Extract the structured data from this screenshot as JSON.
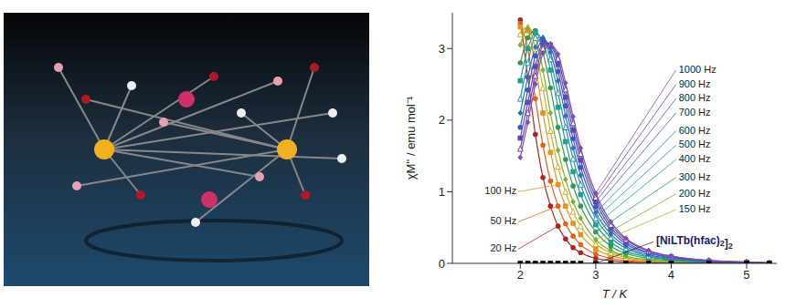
{
  "chart_data": {
    "type": "line",
    "x_label": "T / K",
    "y_label": "χM'' / emu mol⁻¹",
    "x": [
      2,
      2.1,
      2.2,
      2.3,
      2.4,
      2.5,
      2.6,
      2.7,
      2.8,
      3,
      3.2,
      3.4,
      3.7,
      4,
      4.5,
      5,
      5.3
    ],
    "xlim": [
      1.1,
      5.4
    ],
    "xticks": [
      2,
      3,
      4,
      5
    ],
    "ylim": [
      0,
      3.5
    ],
    "yticks": [
      0,
      1,
      2,
      3
    ],
    "grid": false,
    "series": [
      {
        "name": "20 Hz",
        "color": "#b22222",
        "marker": "circle",
        "values": [
          3.4,
          2.6,
          1.8,
          1.2,
          0.8,
          0.52,
          0.34,
          0.22,
          0.15,
          0.07,
          0.04,
          0.02,
          0.01,
          0.01,
          0,
          0,
          0
        ]
      },
      {
        "name": "50 Hz",
        "color": "#e0601a",
        "marker": "circle",
        "values": [
          3.35,
          3.0,
          2.3,
          1.65,
          1.15,
          0.8,
          0.55,
          0.38,
          0.26,
          0.13,
          0.07,
          0.04,
          0.02,
          0.01,
          0,
          0,
          0
        ]
      },
      {
        "name": "100 Hz",
        "color": "#e89020",
        "marker": "square",
        "values": [
          3.3,
          3.25,
          2.75,
          2.1,
          1.55,
          1.1,
          0.8,
          0.56,
          0.4,
          0.2,
          0.11,
          0.06,
          0.03,
          0.02,
          0.01,
          0,
          0
        ]
      },
      {
        "name": "150 Hz",
        "color": "#c8b020",
        "marker": "triangle",
        "values": [
          3.2,
          3.3,
          3.0,
          2.45,
          1.85,
          1.35,
          1.0,
          0.72,
          0.52,
          0.27,
          0.15,
          0.08,
          0.04,
          0.02,
          0.01,
          0,
          0
        ]
      },
      {
        "name": "200 Hz",
        "color": "#7ab030",
        "marker": "diamond",
        "values": [
          3.05,
          3.28,
          3.15,
          2.7,
          2.1,
          1.58,
          1.17,
          0.86,
          0.63,
          0.33,
          0.18,
          0.1,
          0.05,
          0.03,
          0.01,
          0,
          0
        ]
      },
      {
        "name": "300 Hz",
        "color": "#2e9e4a",
        "marker": "circle",
        "values": [
          2.8,
          3.15,
          3.25,
          2.95,
          2.45,
          1.9,
          1.45,
          1.08,
          0.8,
          0.44,
          0.24,
          0.14,
          0.07,
          0.04,
          0.01,
          0.01,
          0
        ]
      },
      {
        "name": "400 Hz",
        "color": "#20a090",
        "marker": "square",
        "values": [
          2.55,
          3.0,
          3.22,
          3.1,
          2.7,
          2.18,
          1.7,
          1.28,
          0.96,
          0.54,
          0.3,
          0.17,
          0.09,
          0.05,
          0.02,
          0.01,
          0
        ]
      },
      {
        "name": "500 Hz",
        "color": "#2090b0",
        "marker": "triangle",
        "values": [
          2.3,
          2.8,
          3.15,
          3.15,
          2.85,
          2.38,
          1.9,
          1.46,
          1.1,
          0.63,
          0.36,
          0.21,
          0.1,
          0.06,
          0.02,
          0.01,
          0
        ]
      },
      {
        "name": "600 Hz",
        "color": "#2a70c0",
        "marker": "diamond",
        "values": [
          2.1,
          2.6,
          3.02,
          3.15,
          2.95,
          2.55,
          2.06,
          1.61,
          1.23,
          0.71,
          0.41,
          0.24,
          0.12,
          0.07,
          0.03,
          0.01,
          0
        ]
      },
      {
        "name": "700 Hz",
        "color": "#3a5ac0",
        "marker": "circle",
        "values": [
          1.9,
          2.42,
          2.9,
          3.12,
          3.02,
          2.68,
          2.2,
          1.74,
          1.34,
          0.79,
          0.46,
          0.27,
          0.14,
          0.08,
          0.03,
          0.01,
          0
        ]
      },
      {
        "name": "800 Hz",
        "color": "#5a4ab8",
        "marker": "square",
        "values": [
          1.75,
          2.25,
          2.75,
          3.07,
          3.05,
          2.78,
          2.32,
          1.86,
          1.44,
          0.86,
          0.5,
          0.3,
          0.15,
          0.09,
          0.03,
          0.01,
          0
        ]
      },
      {
        "name": "900 Hz",
        "color": "#7040b0",
        "marker": "triangle",
        "values": [
          1.6,
          2.1,
          2.62,
          3.0,
          3.06,
          2.86,
          2.43,
          1.96,
          1.53,
          0.92,
          0.54,
          0.33,
          0.17,
          0.1,
          0.04,
          0.02,
          0
        ]
      },
      {
        "name": "1000 Hz",
        "color": "#8050a8",
        "marker": "diamond",
        "values": [
          1.48,
          1.97,
          2.5,
          2.93,
          3.05,
          2.92,
          2.52,
          2.05,
          1.61,
          0.98,
          0.58,
          0.35,
          0.18,
          0.1,
          0.04,
          0.02,
          0.01
        ]
      },
      {
        "name": "[NiLTb(hfac)2]2",
        "color": "#000000",
        "marker": "square",
        "values": [
          0,
          0,
          0,
          0,
          0,
          0,
          0,
          0,
          0,
          0,
          0,
          0,
          0,
          0,
          0,
          0,
          0
        ]
      }
    ]
  }
}
